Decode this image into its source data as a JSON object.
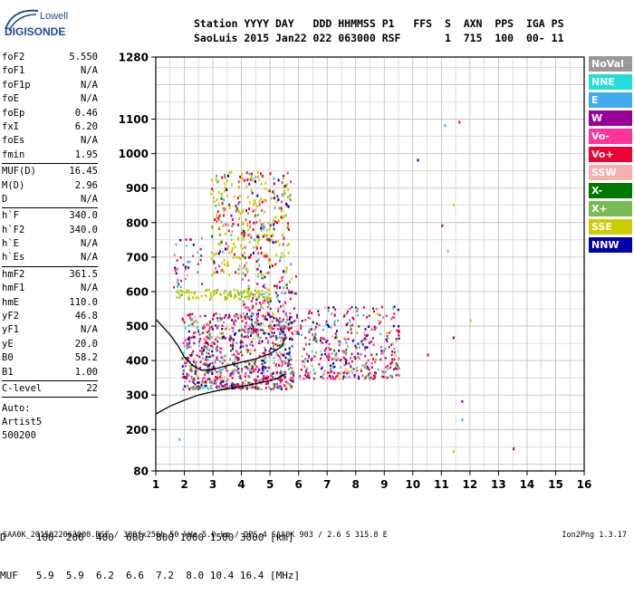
{
  "logo": {
    "line1": "Lowell",
    "line2": "DIGISONDE"
  },
  "header": {
    "line1": "Station YYYY DAY   DDD HHMMSS P1   FFS  S  AXN  PPS  IGA PS",
    "line2": "SaoLuis 2015 Jan22 022 063000 RSF       1  715  100  00- 11"
  },
  "params": [
    {
      "k": "foF2",
      "v": "5.550"
    },
    {
      "k": "foF1",
      "v": "N/A"
    },
    {
      "k": "foF1p",
      "v": "N/A"
    },
    {
      "k": "foE",
      "v": "N/A"
    },
    {
      "k": "foEp",
      "v": "0.46"
    },
    {
      "k": "fxI",
      "v": "6.20"
    },
    {
      "k": "foEs",
      "v": "N/A"
    },
    {
      "k": "fmin",
      "v": "1.95"
    },
    {
      "sep": true
    },
    {
      "k": "MUF(D)",
      "v": "16.45"
    },
    {
      "k": "M(D)",
      "v": "2.96"
    },
    {
      "k": "D",
      "v": "N/A"
    },
    {
      "sep": true
    },
    {
      "k": "h`F",
      "v": "340.0"
    },
    {
      "k": "h`F2",
      "v": "340.0"
    },
    {
      "k": "h`E",
      "v": "N/A"
    },
    {
      "k": "h`Es",
      "v": "N/A"
    },
    {
      "sep": true
    },
    {
      "k": "hmF2",
      "v": "361.5"
    },
    {
      "k": "hmF1",
      "v": "N/A"
    },
    {
      "k": "hmE",
      "v": "110.0"
    },
    {
      "k": "yF2",
      "v": "46.8"
    },
    {
      "k": "yF1",
      "v": "N/A"
    },
    {
      "k": "yE",
      "v": "20.0"
    },
    {
      "k": "B0",
      "v": "58.2"
    },
    {
      "k": "B1",
      "v": "1.00"
    },
    {
      "sep": true
    },
    {
      "k": "C-level",
      "v": "22"
    },
    {
      "sep": true
    }
  ],
  "auto": {
    "line1": "Auto:",
    "line2": "Artist5",
    "line3": "500200"
  },
  "legend": [
    {
      "label": "NoVal",
      "color": "#999999"
    },
    {
      "label": "NNE",
      "color": "#22dddd"
    },
    {
      "label": "E",
      "color": "#44aaee"
    },
    {
      "label": "W",
      "color": "#990099"
    },
    {
      "label": "Vo-",
      "color": "#ff3399"
    },
    {
      "label": "Vo+",
      "color": "#ee0033"
    },
    {
      "label": "SSW",
      "color": "#f5b0b0"
    },
    {
      "label": "X-",
      "color": "#007700"
    },
    {
      "label": "X+",
      "color": "#77bb55"
    },
    {
      "label": "SSE",
      "color": "#cccc00"
    },
    {
      "label": "NNW",
      "color": "#0000aa"
    }
  ],
  "chart_data": {
    "type": "scatter",
    "xlim": [
      1,
      16
    ],
    "ylim": [
      80,
      1280
    ],
    "x_ticks": [
      "1",
      "2",
      "3",
      "4",
      "5",
      "6",
      "7",
      "8",
      "9",
      "10",
      "11",
      "12",
      "13",
      "14",
      "15",
      "16"
    ],
    "y_ticks": [
      {
        "v": 80,
        "label": "80"
      },
      {
        "v": 200,
        "label": "200"
      },
      {
        "v": 300,
        "label": "300"
      },
      {
        "v": 400,
        "label": "400"
      },
      {
        "v": 500,
        "label": "500"
      },
      {
        "v": 600,
        "label": "600"
      },
      {
        "v": 700,
        "label": "700"
      },
      {
        "v": 800,
        "label": "800"
      },
      {
        "v": 900,
        "label": "900"
      },
      {
        "v": 1000,
        "label": "1000"
      },
      {
        "v": 1100,
        "label": "1100"
      },
      {
        "v": 1280,
        "label": "1280"
      }
    ],
    "grid": true,
    "clusters": [
      {
        "name": "F-trace-main",
        "f": [
          1.9,
          5.8
        ],
        "h": [
          320,
          540
        ],
        "density": 900
      },
      {
        "name": "F-trace-upper",
        "f": [
          4.0,
          6.0
        ],
        "h": [
          480,
          650
        ],
        "density": 180
      },
      {
        "name": "F-trace-ext",
        "f": [
          6.0,
          9.5
        ],
        "h": [
          350,
          560
        ],
        "density": 420
      },
      {
        "name": "second-hop",
        "f": [
          2.9,
          5.7
        ],
        "h": [
          650,
          950
        ],
        "density": 380
      },
      {
        "name": "yellow-band",
        "f": [
          1.7,
          5.0
        ],
        "h": [
          580,
          610
        ],
        "density": 120
      },
      {
        "name": "low-scatter",
        "f": [
          1.6,
          2.6
        ],
        "h": [
          600,
          760
        ],
        "density": 40
      }
    ],
    "isolated_points": [
      {
        "f": 10.15,
        "h": 985,
        "c": "#0000aa"
      },
      {
        "f": 11.1,
        "h": 1085,
        "c": "#44aaee"
      },
      {
        "f": 11.6,
        "h": 1095,
        "c": "#ee0033"
      },
      {
        "f": 11.0,
        "h": 795,
        "c": "#990099"
      },
      {
        "f": 11.2,
        "h": 720,
        "c": "#22dddd"
      },
      {
        "f": 11.4,
        "h": 855,
        "c": "#cccc00"
      },
      {
        "f": 11.4,
        "h": 470,
        "c": "#990099"
      },
      {
        "f": 11.7,
        "h": 285,
        "c": "#990099"
      },
      {
        "f": 11.7,
        "h": 232,
        "c": "#44aaee"
      },
      {
        "f": 11.4,
        "h": 140,
        "c": "#cccc00"
      },
      {
        "f": 13.5,
        "h": 148,
        "c": "#990099"
      },
      {
        "f": 1.8,
        "h": 175,
        "c": "#44aaee"
      },
      {
        "f": 12.0,
        "h": 520,
        "c": "#cccc00"
      },
      {
        "f": 10.5,
        "h": 420,
        "c": "#990099"
      }
    ],
    "profile": [
      [
        1.0,
        245
      ],
      [
        1.5,
        268
      ],
      [
        2.0,
        285
      ],
      [
        2.5,
        300
      ],
      [
        3.0,
        310
      ],
      [
        3.5,
        318
      ],
      [
        4.0,
        325
      ],
      [
        4.5,
        333
      ],
      [
        5.0,
        342
      ],
      [
        5.3,
        350
      ],
      [
        5.55,
        361
      ]
    ],
    "trace_curve": [
      [
        1.0,
        520
      ],
      [
        1.5,
        475
      ],
      [
        1.8,
        440
      ],
      [
        2.0,
        410
      ],
      [
        2.3,
        385
      ],
      [
        2.6,
        372
      ],
      [
        3.0,
        375
      ],
      [
        3.5,
        385
      ],
      [
        4.0,
        395
      ],
      [
        4.5,
        405
      ],
      [
        5.0,
        420
      ],
      [
        5.4,
        440
      ],
      [
        5.55,
        470
      ]
    ]
  },
  "d_table": {
    "d_row": "D     100  200  400  600  800 1000 1500 3000 [km]",
    "muf_row": "MUF   5.9  5.9  6.2  6.6  7.2  8.0 10.4 16.4 [MHz]"
  },
  "footer": {
    "left": "SAA0K_2015022063000.RSF / 300fx256h 50 kHz 5.0 km / DPS-4 SAA0K 903 / 2.6 S 315.8 E",
    "right": "Ion2Png 1.3.17"
  }
}
